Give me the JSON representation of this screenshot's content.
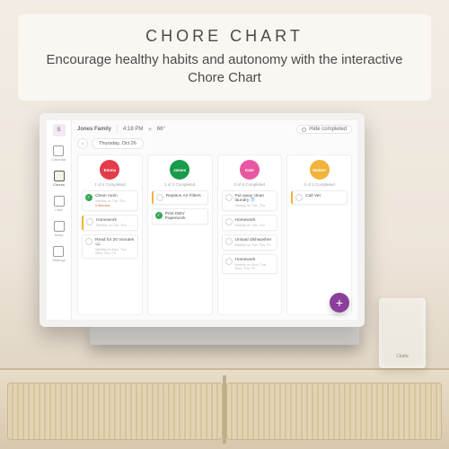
{
  "banner": {
    "title": "CHORE CHART",
    "subtitle": "Encourage healthy habits and autonomy with the interactive Chore Chart"
  },
  "colors": {
    "accent_purple": "#8b3f9c",
    "emma": "#e43b4a",
    "james": "#1a9a4b",
    "kate": "#e857a2",
    "matteo": "#f2b33a",
    "fab": "#8b3f9c"
  },
  "sidenav": {
    "avatar_initial": "S",
    "items": [
      {
        "label": "Calendar"
      },
      {
        "label": "Chores"
      },
      {
        "label": "Lists"
      },
      {
        "label": "Away"
      },
      {
        "label": "Settings"
      }
    ],
    "active_index": 1
  },
  "header": {
    "family": "Jones Family",
    "time": "4:18 PM",
    "temp": "66°",
    "date": "Thursday, Oct 26",
    "hide_completed": "Hide completed"
  },
  "columns": [
    {
      "name": "Emma",
      "color_key": "emma",
      "progress": "1 of 4 Completed",
      "cards": [
        {
          "title": "Clean room",
          "sub": "Weekly on Tue, Thu",
          "due": "5 Minutes",
          "due_color": "#e06a2d",
          "done": true,
          "highlight": false
        },
        {
          "title": "Homework",
          "sub": "Weekly on Tue, Thu",
          "done": false,
          "highlight": true
        },
        {
          "title": "Read for 20 minutes 📖",
          "sub": "Weekly on Mon, Tue, Wed, Thu, Fri",
          "done": false,
          "highlight": false
        }
      ]
    },
    {
      "name": "James",
      "color_key": "james",
      "progress": "1 of 2 Completed",
      "cards": [
        {
          "title": "Replace Air Filters",
          "sub": "",
          "done": false,
          "highlight": true
        },
        {
          "title": "Print DMV Paperwork",
          "sub": "",
          "done": true,
          "highlight": false
        }
      ]
    },
    {
      "name": "Kate",
      "color_key": "kate",
      "progress": "0 of 6 Completed",
      "cards": [
        {
          "title": "Put away clean laundry 👕",
          "sub": "Weekly on Tue, Thu",
          "done": false,
          "highlight": false
        },
        {
          "title": "Homework",
          "sub": "Weekly on Tue, Thu",
          "done": false,
          "highlight": false
        },
        {
          "title": "Unload dishwasher",
          "sub": "Weekly on Tue, Thu, Fri",
          "done": false,
          "highlight": false
        },
        {
          "title": "Homework",
          "sub": "Weekly on Mon, Tue, Wed, Thu, Fri",
          "done": false,
          "highlight": false
        }
      ]
    },
    {
      "name": "Matteo",
      "color_key": "matteo",
      "progress": "0 of 1 Completed",
      "cards": [
        {
          "title": "Call Vet",
          "sub": "",
          "done": false,
          "highlight": true
        }
      ]
    }
  ],
  "fab_label": "+",
  "candle_label": "Cèdre"
}
